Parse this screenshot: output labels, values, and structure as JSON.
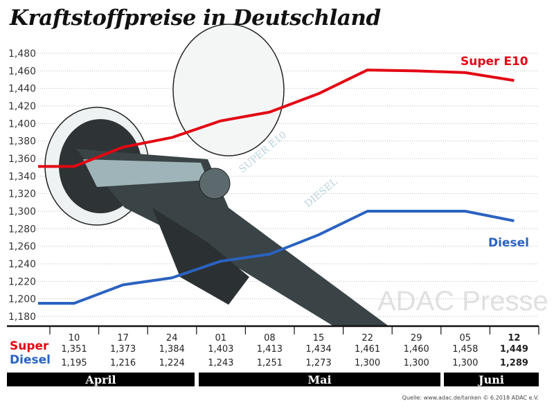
{
  "chart_data": {
    "type": "line",
    "title": "Kraftstoffpreise in Deutschland",
    "x": [
      "10",
      "17",
      "24",
      "01",
      "08",
      "15",
      "22",
      "29",
      "05",
      "12"
    ],
    "months": [
      "April",
      "Mai",
      "Juni"
    ],
    "series": [
      {
        "name": "Super E10",
        "row_label": "Super",
        "color": "#e30613",
        "values": [
          1.351,
          1.373,
          1.384,
          1.403,
          1.413,
          1.434,
          1.461,
          1.46,
          1.458,
          1.449
        ],
        "labels": [
          "1,351",
          "1,373",
          "1,384",
          "1,403",
          "1,413",
          "1,434",
          "1,461",
          "1,460",
          "1,458",
          "1,449"
        ]
      },
      {
        "name": "Diesel",
        "row_label": "Diesel",
        "color": "#2a62c0",
        "values": [
          1.195,
          1.216,
          1.224,
          1.243,
          1.251,
          1.273,
          1.3,
          1.3,
          1.3,
          1.289
        ],
        "labels": [
          "1,195",
          "1,216",
          "1,224",
          "1,243",
          "1,251",
          "1,273",
          "1,300",
          "1,300",
          "1,300",
          "1,289"
        ]
      }
    ],
    "ylim": [
      1.18,
      1.48
    ],
    "yticks": [
      "1,480",
      "1,460",
      "1,440",
      "1,420",
      "1,400",
      "1,380",
      "1,360",
      "1,340",
      "1,320",
      "1,300",
      "1,280",
      "1,260",
      "1,240",
      "1,220",
      "1,200",
      "1,180"
    ],
    "grid": true
  },
  "source": "Quelle: www.adac.de/tanken   © 6.2018  ADAC e.V.",
  "watermark": "ADAC Presse"
}
